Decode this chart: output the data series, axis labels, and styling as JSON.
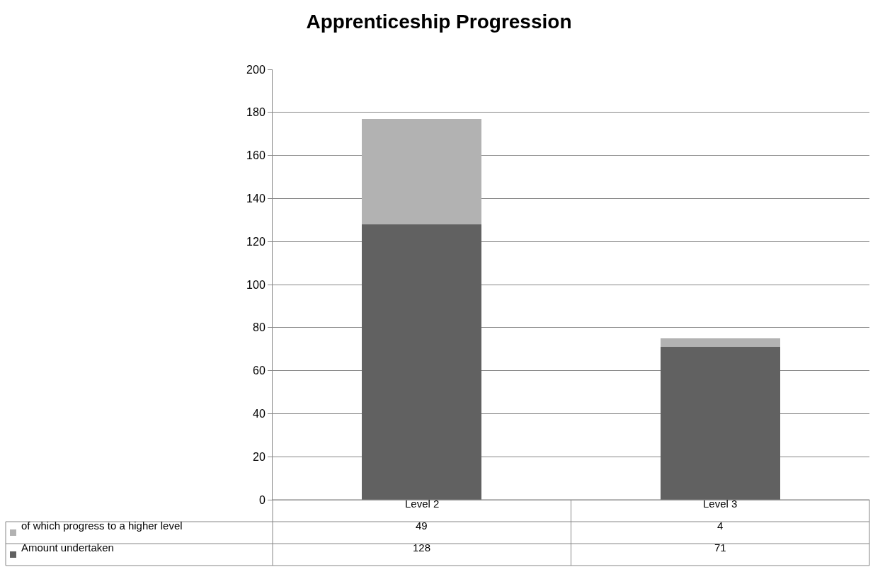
{
  "chart_data": {
    "type": "bar",
    "title": "Apprenticeship Progression",
    "categories": [
      "Level 2",
      "Level 3"
    ],
    "stacked": true,
    "series": [
      {
        "name": "Amount undertaken",
        "color": "#616161",
        "values": [
          128,
          71
        ]
      },
      {
        "name": "of which progress to a higher level",
        "color": "#b2b2b2",
        "values": [
          49,
          4
        ]
      }
    ],
    "ylim": [
      0,
      200
    ],
    "yticks": [
      0,
      20,
      40,
      60,
      80,
      100,
      120,
      140,
      160,
      180,
      200
    ],
    "grid": "y",
    "data_labels": true,
    "legend": "bottom"
  }
}
